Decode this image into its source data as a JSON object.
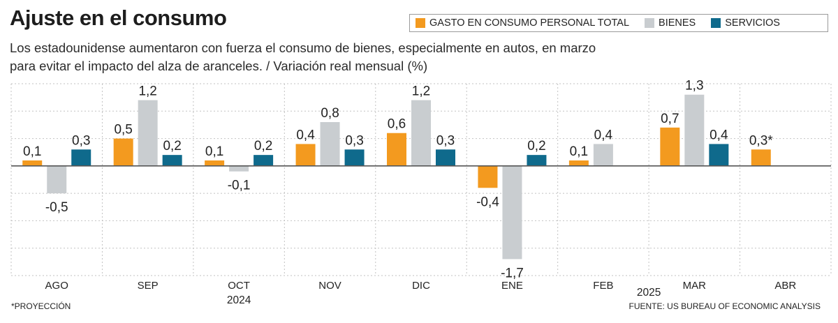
{
  "header": {
    "title": "Ajuste en el consumo",
    "subtitle": "Los estadounidense aumentaron con fuerza el consumo de bienes, especialmente en autos, en marzo para evitar el impacto del alza de aranceles. / Variación real mensual (%)"
  },
  "footer": {
    "footnote": "*PROYECCIÓN",
    "source": "FUENTE: US BUREAU OF ECONOMIC ANALYSIS"
  },
  "colors": {
    "total": "#f39a1f",
    "bienes": "#c9cdd0",
    "servicios": "#0f6a8c",
    "grid": "#c2c2c2",
    "zero": "#555555"
  },
  "chart_data": {
    "type": "bar",
    "categories": [
      "AGO",
      "SEP",
      "OCT",
      "NOV",
      "DIC",
      "ENE",
      "FEB",
      "MAR",
      "ABR"
    ],
    "year_labels": [
      {
        "text": "2024",
        "category": "OCT"
      },
      {
        "text": "2025",
        "category": "MAR"
      }
    ],
    "series": [
      {
        "name": "GASTO EN CONSUMO PERSONAL TOTAL",
        "color_key": "total",
        "values": [
          0.1,
          0.5,
          0.1,
          0.4,
          0.6,
          -0.4,
          0.1,
          0.7,
          0.3
        ],
        "labels": [
          "0,1",
          "0,5",
          "0,1",
          "0,4",
          "0,6",
          "-0,4",
          "0,1",
          "0,7",
          "0,3*"
        ]
      },
      {
        "name": "BIENES",
        "color_key": "bienes",
        "values": [
          -0.5,
          1.2,
          -0.1,
          0.8,
          1.2,
          -1.7,
          0.4,
          1.3,
          null
        ],
        "labels": [
          "-0,5",
          "1,2",
          "-0,1",
          "0,8",
          "1,2",
          "-1,7",
          "0,4",
          "1,3",
          ""
        ]
      },
      {
        "name": "SERVICIOS",
        "color_key": "servicios",
        "values": [
          0.3,
          0.2,
          0.2,
          0.3,
          0.3,
          0.2,
          null,
          0.4,
          null
        ],
        "labels": [
          "0,3",
          "0,2",
          "0,2",
          "0,3",
          "0,3",
          "0,2",
          "",
          "0,4",
          ""
        ]
      }
    ],
    "ylim": [
      -2.0,
      1.5
    ],
    "grid": true,
    "legend_position": "top-right"
  }
}
